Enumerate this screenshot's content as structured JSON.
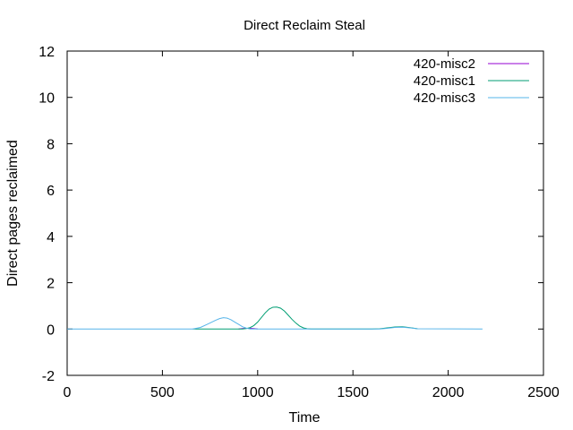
{
  "chart_data": {
    "type": "line",
    "title": "Direct Reclaim Steal",
    "xlabel": "Time",
    "ylabel": "Direct pages reclaimed",
    "xlim": [
      0,
      2500
    ],
    "ylim": [
      -2,
      12
    ],
    "xticks": [
      0,
      500,
      1000,
      1500,
      2000,
      2500
    ],
    "yticks": [
      -2,
      0,
      2,
      4,
      6,
      8,
      10,
      12
    ],
    "grid": false,
    "legend": "top-right",
    "series": [
      {
        "name": "420-misc2",
        "color": "#9400d3",
        "x": [
          900,
          920,
          940,
          960,
          980,
          1000
        ],
        "y": [
          0,
          0.02,
          0.03,
          0.03,
          0.02,
          0
        ]
      },
      {
        "name": "420-misc1",
        "color": "#009e73",
        "x": [
          660,
          700,
          760,
          820,
          880,
          920,
          940,
          960,
          980,
          1000,
          1020,
          1040,
          1060,
          1080,
          1100,
          1120,
          1140,
          1160,
          1180,
          1200,
          1220,
          1240,
          1260,
          1280,
          1600,
          1640,
          1680,
          1720,
          1760,
          1800,
          1840
        ],
        "y": [
          0,
          0,
          0,
          0,
          0,
          0,
          0.02,
          0.06,
          0.15,
          0.3,
          0.5,
          0.7,
          0.86,
          0.94,
          0.95,
          0.9,
          0.78,
          0.6,
          0.42,
          0.26,
          0.13,
          0.05,
          0.01,
          0,
          0,
          0.01,
          0.05,
          0.09,
          0.1,
          0.06,
          0.01
        ]
      },
      {
        "name": "420-misc3",
        "color": "#56b4e9",
        "x": [
          0,
          660,
          700,
          740,
          780,
          800,
          820,
          840,
          860,
          880,
          900,
          920,
          940,
          960,
          1640,
          1680,
          1720,
          1760,
          1800,
          1840,
          2180
        ],
        "y": [
          0,
          0,
          0.07,
          0.22,
          0.38,
          0.45,
          0.49,
          0.47,
          0.4,
          0.3,
          0.2,
          0.1,
          0.04,
          0,
          0,
          0.03,
          0.07,
          0.08,
          0.05,
          0.01,
          0
        ]
      }
    ]
  }
}
